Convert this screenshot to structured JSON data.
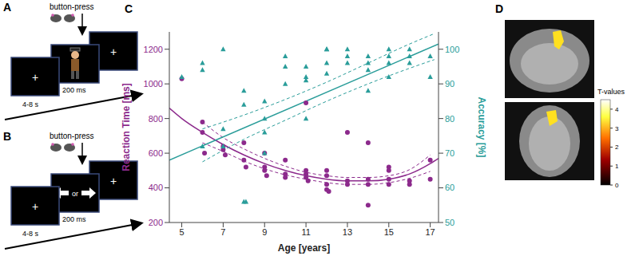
{
  "panel_a": {
    "letter": "A",
    "response": "button-press",
    "fixation": "+",
    "stimulus_duration": "200 ms",
    "interval": "4-8 s"
  },
  "panel_b": {
    "letter": "B",
    "response": "button-press",
    "fixation": "+",
    "stimulus_duration": "200 ms",
    "interval": "4-8 s",
    "or": "or"
  },
  "chart_data": {
    "letter": "C",
    "type": "scatter",
    "x_label": "Age [years]",
    "y_label": "Reaction Time [ms]",
    "y2_label": "Accuracy [%]",
    "xlim": [
      4.4,
      17.4
    ],
    "xticks": [
      5,
      7,
      9,
      11,
      13,
      15,
      17
    ],
    "ylim": [
      200,
      1300
    ],
    "yticks": [
      200,
      400,
      600,
      800,
      1000,
      1200
    ],
    "y2lim": [
      50,
      105
    ],
    "y2ticks": [
      50,
      60,
      70,
      80,
      90,
      100
    ],
    "series": [
      {
        "type": "scatter",
        "color": "#8c2a8c",
        "marker": "circle",
        "x": [
          5,
          6,
          6,
          6.1,
          7,
          7,
          7.1,
          8,
          8,
          8.1,
          9,
          9,
          9,
          9.1,
          10,
          10,
          10,
          11,
          11,
          11,
          11,
          11.1,
          12,
          12,
          12,
          12,
          12.1,
          13,
          13,
          13,
          14,
          14,
          14,
          14,
          15,
          15,
          15,
          15,
          16,
          16,
          17,
          17
        ],
        "values": [
          1030,
          780,
          720,
          600,
          640,
          620,
          590,
          660,
          560,
          520,
          600,
          520,
          500,
          470,
          560,
          480,
          460,
          890,
          500,
          480,
          460,
          440,
          500,
          470,
          420,
          390,
          380,
          720,
          440,
          420,
          660,
          450,
          420,
          300,
          520,
          500,
          450,
          420,
          440,
          420,
          560,
          450
        ]
      },
      {
        "type": "line",
        "color": "#8c2a8c",
        "line_style": "solid",
        "x": [
          4.4,
          5,
          6,
          7,
          8,
          9,
          10,
          11,
          12,
          13,
          14,
          15,
          16,
          17,
          17.4
        ],
        "values": [
          860,
          800,
          720,
          650,
          590,
          540,
          500,
          470,
          450,
          440,
          440,
          450,
          480,
          540,
          570
        ]
      },
      {
        "type": "line",
        "color": "#8c2a8c",
        "line_style": "dashed",
        "x": [
          6,
          7,
          8,
          9,
          10,
          11,
          12,
          13,
          14,
          15,
          16,
          17
        ],
        "values": [
          780,
          690,
          625,
          570,
          525,
          490,
          470,
          460,
          460,
          470,
          505,
          590
        ]
      },
      {
        "type": "line",
        "color": "#8c2a8c",
        "line_style": "dashed",
        "x": [
          6,
          7,
          8,
          9,
          10,
          11,
          12,
          13,
          14,
          15,
          16,
          17
        ],
        "values": [
          660,
          610,
          555,
          510,
          475,
          450,
          430,
          420,
          420,
          430,
          455,
          495
        ]
      },
      {
        "type": "scatter",
        "axis": "y2",
        "color": "#2a9d9a",
        "marker": "triangle",
        "x": [
          5,
          6,
          6,
          6,
          7,
          7,
          7,
          8,
          8,
          8,
          8.1,
          9,
          9,
          9,
          9,
          10,
          10,
          10,
          11,
          11,
          11,
          11,
          12,
          12,
          12,
          12,
          13,
          13,
          13,
          14,
          14,
          14,
          14,
          15,
          15,
          15,
          15,
          16,
          16,
          16,
          17,
          17
        ],
        "values": [
          92,
          96,
          94,
          72,
          100,
          77,
          72,
          88,
          84,
          56,
          56,
          85,
          80,
          76,
          70,
          98,
          95,
          90,
          95,
          92,
          91,
          80,
          100,
          100,
          96,
          93,
          100,
          98,
          96,
          98,
          96,
          94,
          88,
          100,
          98,
          96,
          92,
          100,
          98,
          96,
          98,
          92
        ]
      },
      {
        "type": "line",
        "axis": "y2",
        "color": "#2a9d9a",
        "line_style": "solid",
        "x": [
          4.4,
          17.4
        ],
        "values": [
          68,
          101.5
        ]
      },
      {
        "type": "line",
        "axis": "y2",
        "color": "#2a9d9a",
        "line_style": "dashed",
        "x": [
          6,
          8,
          10,
          12,
          14,
          16,
          17.2
        ],
        "values": [
          77,
          81,
          85.5,
          90.5,
          96,
          101.5,
          104.5
        ]
      },
      {
        "type": "line",
        "axis": "y2",
        "color": "#2a9d9a",
        "line_style": "dashed",
        "x": [
          6,
          8,
          10,
          12,
          14,
          16,
          17.2
        ],
        "values": [
          67.5,
          74,
          79.5,
          85,
          90,
          94.5,
          97
        ]
      }
    ]
  },
  "panel_d": {
    "letter": "D",
    "colorbar_title": "T-values",
    "colorbar_range": [
      0,
      4.5
    ],
    "colorbar_ticks": [
      0,
      1,
      2,
      3,
      4
    ]
  }
}
